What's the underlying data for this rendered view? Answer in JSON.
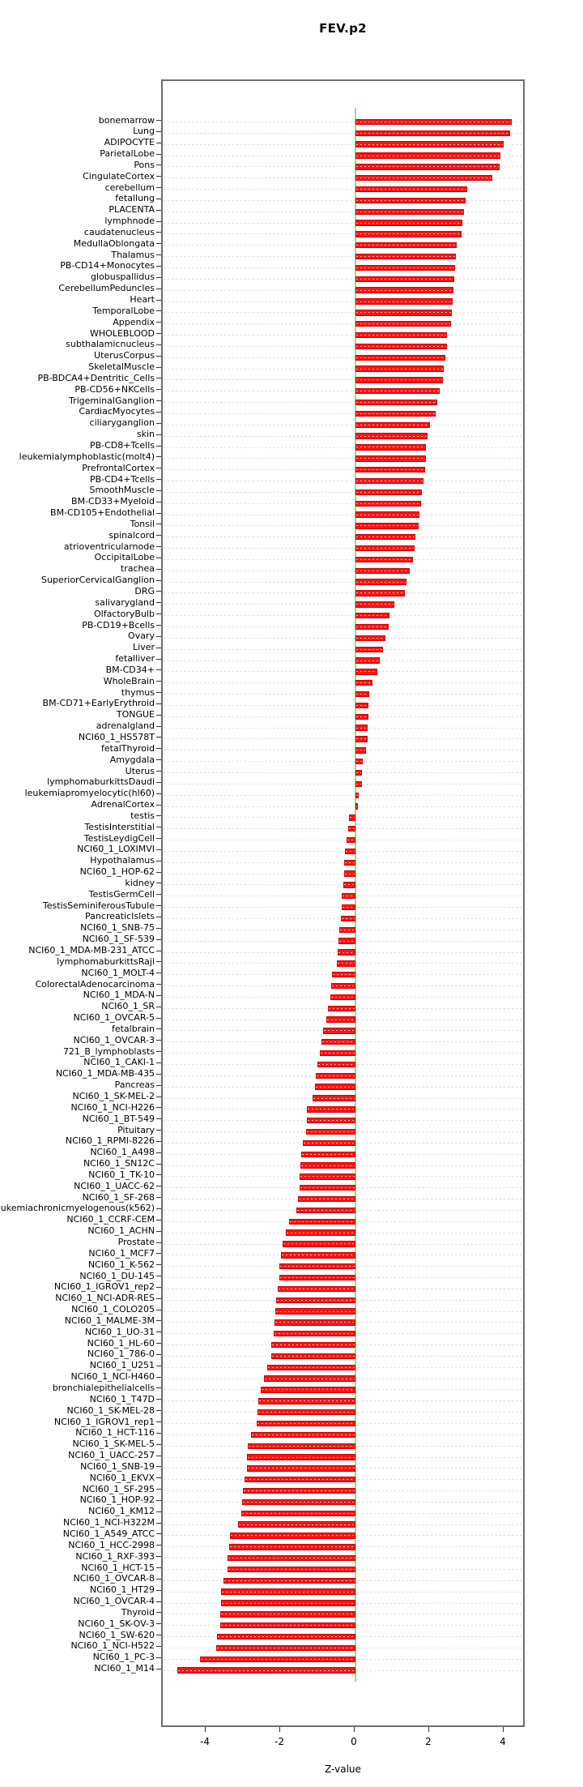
{
  "chart_data": {
    "type": "bar",
    "orientation": "horizontal",
    "title": "FEV.p2",
    "xlabel": "Z-value",
    "xlim": [
      -5.15,
      4.6
    ],
    "xticks": [
      -4,
      -2,
      0,
      2,
      4
    ],
    "xtick_labels": [
      "-4",
      "-2",
      "0",
      "2",
      "4"
    ],
    "grid": true,
    "legend": "none",
    "bar_color": "#fa1414",
    "zero_line_color": "#86e886",
    "gridline_color": "#d9d9d9",
    "categories": [
      "bonemarrow",
      "Lung",
      "ADIPOCYTE",
      "ParietalLobe",
      "Pons",
      "CingulateCortex",
      "cerebellum",
      "fetallung",
      "PLACENTA",
      "lymphnode",
      "caudatenucleus",
      "MedullaOblongata",
      "Thalamus",
      "PB-CD14+Monocytes",
      "globuspallidus",
      "CerebellumPeduncles",
      "Heart",
      "TemporalLobe",
      "Appendix",
      "WHOLEBLOOD",
      "subthalamicnucleus",
      "UterusCorpus",
      "SkeletalMuscle",
      "PB-BDCA4+Dentritic_Cells",
      "PB-CD56+NKCells",
      "TrigeminalGanglion",
      "CardiacMyocytes",
      "ciliaryganglion",
      "skin",
      "PB-CD8+Tcells",
      "leukemialymphoblastic(molt4)",
      "PrefrontalCortex",
      "PB-CD4+Tcells",
      "SmoothMuscle",
      "BM-CD33+Myeloid",
      "BM-CD105+Endothelial",
      "Tonsil",
      "spinalcord",
      "atrioventricularnode",
      "OccipitalLobe",
      "trachea",
      "SuperiorCervicalGanglion",
      "DRG",
      "salivarygland",
      "OlfactoryBulb",
      "PB-CD19+Bcells",
      "Ovary",
      "Liver",
      "fetalliver",
      "BM-CD34+",
      "WholeBrain",
      "thymus",
      "BM-CD71+EarlyErythroid",
      "TONGUE",
      "adrenalgland",
      "NCI60_1_HS578T",
      "fetalThyroid",
      "Amygdala",
      "Uterus",
      "lymphomaburkittsDaudi",
      "leukemiapromyelocytic(hl60)",
      "AdrenalCortex",
      "testis",
      "TestisInterstitial",
      "TestisLeydigCell",
      "NCI60_1_LOXIMVI",
      "Hypothalamus",
      "NCI60_1_HOP-62",
      "kidney",
      "TestisGermCell",
      "TestisSeminiferousTubule",
      "PancreaticIslets",
      "NCI60_1_SNB-75",
      "NCI60_1_SF-539",
      "NCI60_1_MDA-MB-231_ATCC",
      "lymphomaburkittsRaji",
      "NCI60_1_MOLT-4",
      "ColorectalAdenocarcinoma",
      "NCI60_1_MDA-N",
      "NCI60_1_SR",
      "NCI60_1_OVCAR-5",
      "fetalbrain",
      "NCI60_1_OVCAR-3",
      "721_B_lymphoblasts",
      "NCI60_1_CAKI-1",
      "NCI60_1_MDA-MB-435",
      "Pancreas",
      "NCI60_1_SK-MEL-2",
      "NCI60_1_NCI-H226",
      "NCI60_1_BT-549",
      "Pituitary",
      "NCI60_1_RPMI-8226",
      "NCI60_1_A498",
      "NCI60_1_SN12C",
      "NCI60_1_TK-10",
      "NCI60_1_UACC-62",
      "NCI60_1_SF-268",
      "leukemiachronicmyelogenous(k562)",
      "NCI60_1_CCRF-CEM",
      "NCI60_1_ACHN",
      "Prostate",
      "NCI60_1_MCF7",
      "NCI60_1_K-562",
      "NCI60_1_DU-145",
      "NCI60_1_IGROV1_rep2",
      "NCI60_1_NCI-ADR-RES",
      "NCI60_1_COLO205",
      "NCI60_1_MALME-3M",
      "NCI60_1_UO-31",
      "NCI60_1_HL-60",
      "NCI60_1_786-0",
      "NCI60_1_U251",
      "NCI60_1_NCI-H460",
      "bronchialepithelialcells",
      "NCI60_1_T47D",
      "NCI60_1_SK-MEL-28",
      "NCI60_1_IGROV1_rep1",
      "NCI60_1_HCT-116",
      "NCI60_1_SK-MEL-5",
      "NCI60_1_UACC-257",
      "NCI60_1_SNB-19",
      "NCI60_1_EKVX",
      "NCI60_1_SF-295",
      "NCI60_1_HOP-92",
      "NCI60_1_KM12",
      "NCI60_1_NCI-H322M",
      "NCI60_1_A549_ATCC",
      "NCI60_1_HCC-2998",
      "NCI60_1_RXF-393",
      "NCI60_1_HCT-15",
      "NCI60_1_OVCAR-8",
      "NCI60_1_HT29",
      "NCI60_1_OVCAR-4",
      "Thyroid",
      "NCI60_1_SK-OV-3",
      "NCI60_1_SW-620",
      "NCI60_1_NCI-H522",
      "NCI60_1_PC-3",
      "NCI60_1_M14"
    ],
    "values": [
      4.2,
      4.15,
      3.98,
      3.9,
      3.88,
      3.68,
      3.0,
      2.95,
      2.92,
      2.88,
      2.84,
      2.72,
      2.7,
      2.68,
      2.66,
      2.63,
      2.6,
      2.58,
      2.56,
      2.46,
      2.45,
      2.41,
      2.38,
      2.35,
      2.25,
      2.2,
      2.15,
      2.0,
      1.93,
      1.9,
      1.89,
      1.86,
      1.83,
      1.78,
      1.75,
      1.72,
      1.7,
      1.6,
      1.58,
      1.55,
      1.45,
      1.37,
      1.32,
      1.05,
      0.92,
      0.9,
      0.8,
      0.73,
      0.66,
      0.59,
      0.45,
      0.36,
      0.35,
      0.34,
      0.33,
      0.32,
      0.28,
      0.2,
      0.18,
      0.17,
      0.08,
      0.06,
      -0.18,
      -0.2,
      -0.23,
      -0.28,
      -0.3,
      -0.31,
      -0.32,
      -0.36,
      -0.37,
      -0.4,
      -0.43,
      -0.46,
      -0.47,
      -0.49,
      -0.64,
      -0.66,
      -0.68,
      -0.74,
      -0.78,
      -0.86,
      -0.91,
      -0.95,
      -1.03,
      -1.06,
      -1.08,
      -1.16,
      -1.3,
      -1.31,
      -1.33,
      -1.42,
      -1.45,
      -1.47,
      -1.49,
      -1.5,
      -1.54,
      -1.59,
      -1.78,
      -1.88,
      -1.95,
      -2.0,
      -2.04,
      -2.05,
      -2.08,
      -2.13,
      -2.16,
      -2.18,
      -2.2,
      -2.26,
      -2.27,
      -2.38,
      -2.45,
      -2.55,
      -2.61,
      -2.64,
      -2.65,
      -2.8,
      -2.9,
      -2.91,
      -2.92,
      -2.97,
      -3.03,
      -3.05,
      -3.06,
      -3.15,
      -3.36,
      -3.39,
      -3.43,
      -3.44,
      -3.55,
      -3.6,
      -3.61,
      -3.62,
      -3.64,
      -3.72,
      -3.73,
      -4.17,
      -4.79
    ]
  }
}
